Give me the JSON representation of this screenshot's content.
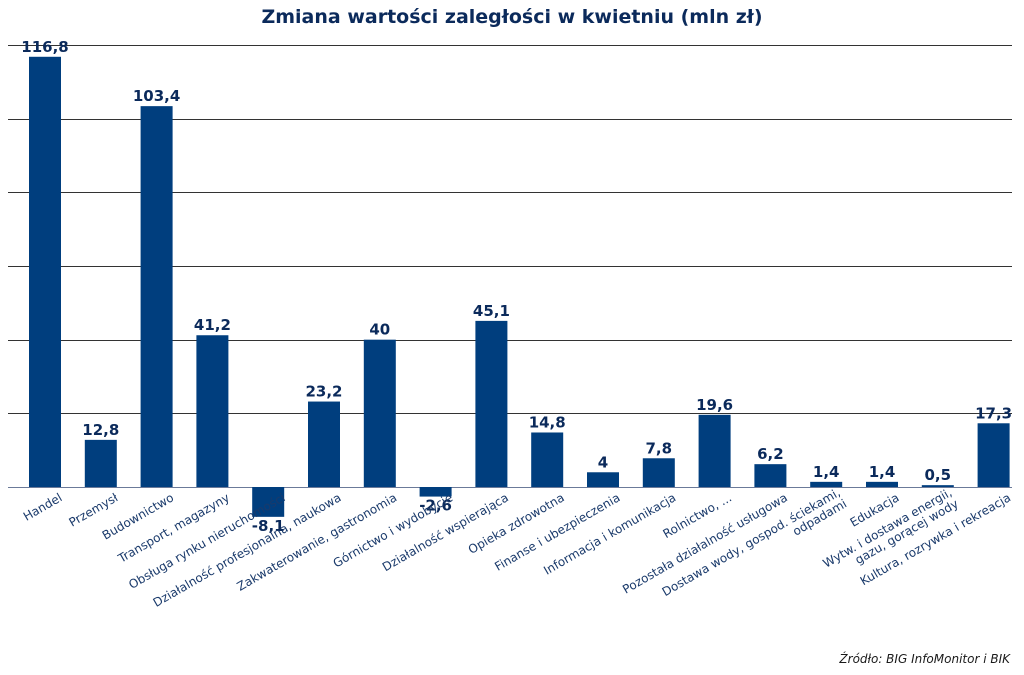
{
  "colors": {
    "bar": "#003E7E",
    "grid": "#333333",
    "label": "#0b2a5b",
    "tick": "#1a3a6b"
  },
  "chart_data": {
    "type": "bar",
    "title": "Zmiana wartości zaległości w kwietniu (mln zł)",
    "categories": [
      "Handel",
      "Przemysł",
      "Budownictwo",
      "Transport, magazyny",
      "Obsługa rynku nieruchomości",
      "Działalność profesjonalna, naukowa",
      "Zakwaterowanie, gastronomia",
      "Górnictwo i wydobycie",
      "Działalność wspierająca",
      "Opieka zdrowotna",
      "Finanse i ubezpieczenia",
      "Informacja i komunikacja",
      "Rolnictwo, ...",
      "Pozostała działalność usługowa",
      "Dostawa wody, gospod. ściekami, odpadami",
      "Edukacja",
      "Wytw. i dostawa energii, gazu, gorącej wody",
      "Kultura, rozrywka i rekreacja"
    ],
    "category_lines": [
      [
        "Handel"
      ],
      [
        "Przemysł"
      ],
      [
        "Budownictwo"
      ],
      [
        "Transport, magazyny"
      ],
      [
        "Obsługa rynku nieruchomości"
      ],
      [
        "Działalność profesjonalna, naukowa"
      ],
      [
        "Zakwaterowanie, gastronomia"
      ],
      [
        "Górnictwo i wydobycie"
      ],
      [
        "Działalność wspierająca"
      ],
      [
        "Opieka zdrowotna"
      ],
      [
        "Finanse i ubezpieczenia"
      ],
      [
        "Informacja i komunikacja"
      ],
      [
        "Rolnictwo, ..."
      ],
      [
        "Pozostała działalność usługowa"
      ],
      [
        "Dostawa wody, gospod. ściekami,",
        "odpadami"
      ],
      [
        "Edukacja"
      ],
      [
        "Wytw. i dostawa energii,",
        "gazu, gorącej wody"
      ],
      [
        "Kultura, rozrywka i rekreacja"
      ]
    ],
    "values": [
      116.8,
      12.8,
      103.4,
      41.2,
      -8.1,
      23.2,
      40,
      -2.6,
      45.1,
      14.8,
      4,
      7.8,
      19.6,
      6.2,
      1.4,
      1.4,
      0.5,
      17.3
    ],
    "value_labels": [
      "116,8",
      "12,8",
      "103,4",
      "41,2",
      "-8,1",
      "23,2",
      "40",
      "-2,6",
      "45,1",
      "14,8",
      "4",
      "7,8",
      "19,6",
      "6,2",
      "1,4",
      "1,4",
      "0,5",
      "17,3"
    ],
    "xlabel": "",
    "ylabel": "",
    "ylim": [
      -10,
      120
    ],
    "gridlines": [
      20,
      40,
      60,
      80,
      100,
      120
    ],
    "grid": true,
    "legend": "none",
    "source": "Źródło: BIG InfoMonitor i BIK"
  }
}
